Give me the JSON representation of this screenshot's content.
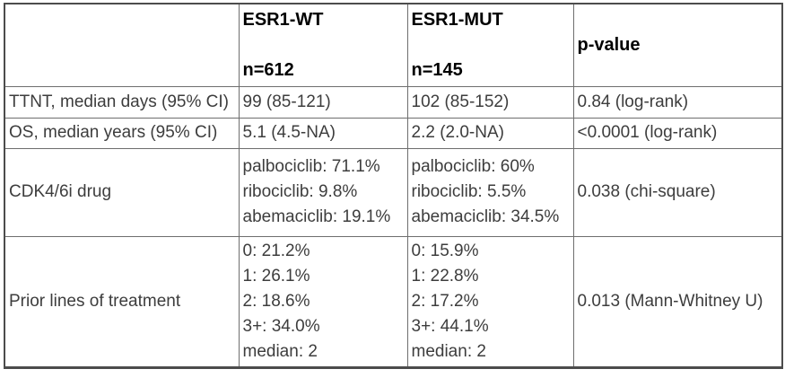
{
  "table": {
    "colors": {
      "background": "#ffffff",
      "outer_border": "#4c4c4c",
      "inner_border": "#6e6e6e",
      "body_text": "#3d3d3d",
      "header_text": "#000000"
    },
    "header": {
      "corner": "",
      "col_wt": {
        "title": "ESR1-WT",
        "n": "n=612"
      },
      "col_mut": {
        "title": "ESR1-MUT",
        "n": "n=145"
      },
      "col_p": {
        "title": "p-value"
      }
    },
    "rows": [
      {
        "label": "TTNT, median days (95% CI)",
        "wt": [
          "99 (85-121)"
        ],
        "mut": [
          "102 (85-152)"
        ],
        "p": "0.84 (log-rank)"
      },
      {
        "label": "OS, median years (95% CI)",
        "wt": [
          "5.1 (4.5-NA)"
        ],
        "mut": [
          "2.2 (2.0-NA)"
        ],
        "p": "<0.0001 (log-rank)"
      },
      {
        "label": "CDK4/6i drug",
        "wt": [
          "palbociclib: 71.1%",
          "ribociclib: 9.8%",
          "abemaciclib: 19.1%"
        ],
        "mut": [
          "palbociclib: 60%",
          "ribociclib: 5.5%",
          "abemaciclib: 34.5%"
        ],
        "p": "0.038 (chi-square)"
      },
      {
        "label": "Prior lines of treatment",
        "wt": [
          "0: 21.2%",
          "1: 26.1%",
          "2: 18.6%",
          "3+: 34.0%",
          "median: 2"
        ],
        "mut": [
          "0: 15.9%",
          "1: 22.8%",
          "2: 17.2%",
          "3+: 44.1%",
          "median: 2"
        ],
        "p": "0.013 (Mann-Whitney U)"
      }
    ]
  }
}
